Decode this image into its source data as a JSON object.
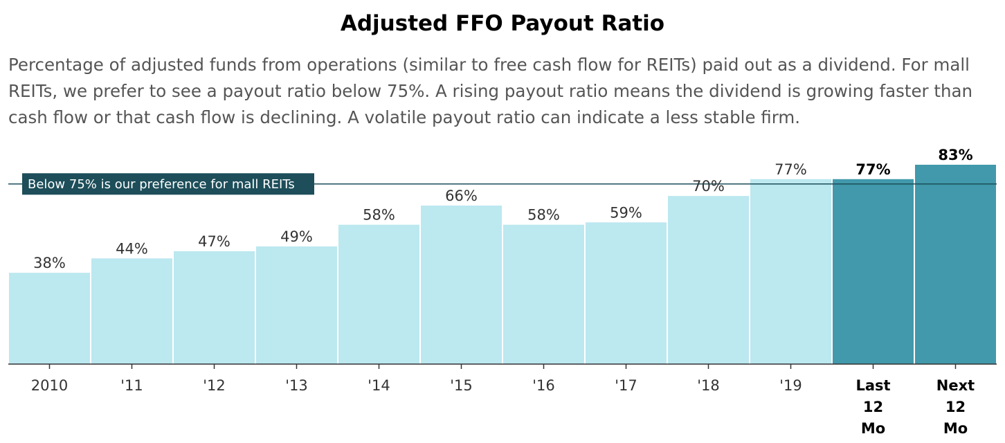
{
  "header": {
    "title": "Adjusted FFO Payout Ratio",
    "subtitle": "Percentage of adjusted funds from operations (similar to free cash flow for REITs) paid out as a dividend. For mall REITs, we prefer to see a payout ratio below 75%. A rising payout ratio means the dividend is growing faster than cash flow or that cash flow is declining. A volatile payout ratio can indicate a less stable firm."
  },
  "colors": {
    "historical_bar": "#bce8f0",
    "forecast_bar": "#4199ab",
    "reference_line": "#1d4e5a",
    "reference_label_bg": "#1d4e5a"
  },
  "chart_data": {
    "type": "bar",
    "title": "Adjusted FFO Payout Ratio",
    "categories": [
      "2010",
      "'11",
      "'12",
      "'13",
      "'14",
      "'15",
      "'16",
      "'17",
      "'18",
      "'19",
      "Last 12 Mo",
      "Next 12 Mo"
    ],
    "category_lines": [
      [
        "2010"
      ],
      [
        "'11"
      ],
      [
        "'12"
      ],
      [
        "'13"
      ],
      [
        "'14"
      ],
      [
        "'15"
      ],
      [
        "'16"
      ],
      [
        "'17"
      ],
      [
        "'18"
      ],
      [
        "'19"
      ],
      [
        "Last",
        "12",
        "Mo"
      ],
      [
        "Next",
        "12",
        "Mo"
      ]
    ],
    "values": [
      38,
      44,
      47,
      49,
      58,
      66,
      58,
      59,
      70,
      77,
      77,
      83
    ],
    "value_labels": [
      "38%",
      "44%",
      "47%",
      "49%",
      "58%",
      "66%",
      "58%",
      "59%",
      "70%",
      "77%",
      "77%",
      "83%"
    ],
    "highlighted": [
      false,
      false,
      false,
      false,
      false,
      false,
      false,
      false,
      false,
      false,
      true,
      true
    ],
    "ylim": [
      0,
      85
    ],
    "xlabel": "",
    "ylabel": "",
    "grid": false,
    "reference_line": {
      "value": 75,
      "label": "Below 75% is our preference for mall REITs"
    }
  }
}
